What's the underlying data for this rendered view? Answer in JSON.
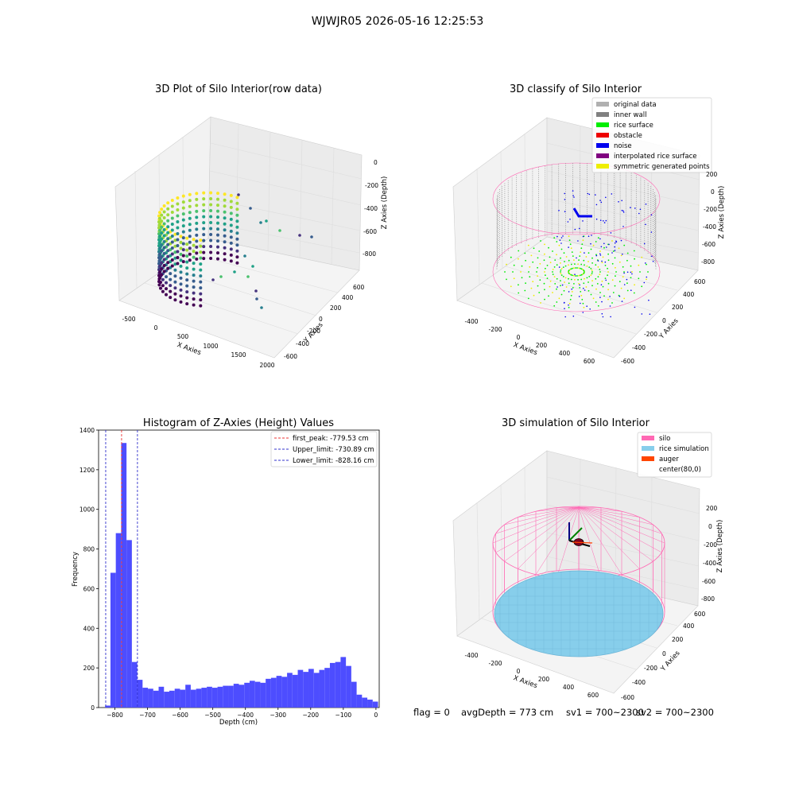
{
  "figure": {
    "title": "WJWJR05 2026-05-16 12:25:53",
    "footer": [
      "flag = 0",
      "avgDepth = 773 cm",
      "sv1 = 700~2300",
      "sv2 = 700~2300"
    ]
  },
  "chart_data": [
    {
      "type": "scatter",
      "title": "3D Plot of Silo Interior(row data)",
      "xlabel": "X Axies",
      "ylabel": "Y Axies",
      "zlabel": "Z Axies (Depth)",
      "x_ticks": [
        "-500",
        "0",
        "500",
        "1000",
        "1500",
        "2000"
      ],
      "y_ticks": [
        "-600",
        "-400",
        "-200",
        "0",
        "200",
        "400",
        "600"
      ],
      "z_ticks": [
        "-800",
        "-600",
        "-400",
        "-200",
        "0"
      ],
      "colormap": "viridis"
    },
    {
      "type": "scatter",
      "title": "3D classify of Silo Interior",
      "xlabel": "X Axies",
      "ylabel": "Y Axies",
      "zlabel": "Z Axies (Depth)",
      "x_ticks": [
        "-400",
        "-200",
        "0",
        "200",
        "400",
        "600"
      ],
      "y_ticks": [
        "-600",
        "-400",
        "-200",
        "0",
        "200",
        "400",
        "600"
      ],
      "z_ticks": [
        "-800",
        "-600",
        "-400",
        "-200",
        "0",
        "200"
      ],
      "legend": [
        {
          "label": "original data",
          "color": "#b0b0b0"
        },
        {
          "label": "inner wall",
          "color": "#808080"
        },
        {
          "label": "rice surface",
          "color": "#00ee00"
        },
        {
          "label": "obstacle",
          "color": "#ee0000"
        },
        {
          "label": "noise",
          "color": "#0000ee"
        },
        {
          "label": "interpolated rice surface",
          "color": "#800080"
        },
        {
          "label": "symmetric generated points",
          "color": "#eeee00"
        }
      ]
    },
    {
      "type": "bar",
      "title": "Histogram of Z-Axies (Height) Values",
      "xlabel": "Depth (cm)",
      "ylabel": "Frequency",
      "xlim": [
        -850,
        10
      ],
      "ylim": [
        0,
        1400
      ],
      "x_ticks": [
        -800,
        -700,
        -600,
        -500,
        -400,
        -300,
        -200,
        -100,
        0
      ],
      "y_ticks": [
        0,
        200,
        400,
        600,
        800,
        1000,
        1200,
        1400
      ],
      "bin_start": -830,
      "bin_width": 16.4,
      "values": [
        10,
        680,
        880,
        1335,
        845,
        230,
        140,
        100,
        95,
        85,
        105,
        80,
        85,
        95,
        90,
        115,
        90,
        95,
        100,
        105,
        100,
        105,
        110,
        110,
        120,
        115,
        125,
        135,
        130,
        125,
        145,
        150,
        160,
        155,
        175,
        165,
        190,
        180,
        195,
        175,
        190,
        200,
        225,
        230,
        255,
        210,
        130,
        65,
        50,
        40,
        30
      ],
      "bar_color": "#4d4dff",
      "vlines": [
        {
          "label": "first_peak: -779.53 cm",
          "x": -779.53,
          "color": "#ee3333"
        },
        {
          "label": "Upper_limit: -730.89 cm",
          "x": -730.89,
          "color": "#3333cc"
        },
        {
          "label": "Lower_limit: -828.16 cm",
          "x": -828.16,
          "color": "#3333cc"
        }
      ]
    },
    {
      "type": "scatter",
      "title": "3D simulation of Silo Interior",
      "xlabel": "X Axies",
      "ylabel": "Y Axies",
      "zlabel": "Z Axies (Depth)",
      "x_ticks": [
        "-400",
        "-200",
        "0",
        "200",
        "400",
        "600"
      ],
      "y_ticks": [
        "-600",
        "-400",
        "-200",
        "0",
        "200",
        "400",
        "600"
      ],
      "z_ticks": [
        "-800",
        "-600",
        "-400",
        "-200",
        "0",
        "200"
      ],
      "legend": [
        {
          "label": "silo",
          "color": "#ff69b4"
        },
        {
          "label": "rice simulation",
          "color": "#87ceeb"
        },
        {
          "label": "auger",
          "color": "#ff4500"
        },
        {
          "label": "center(80,0)",
          "color": ""
        }
      ]
    }
  ]
}
